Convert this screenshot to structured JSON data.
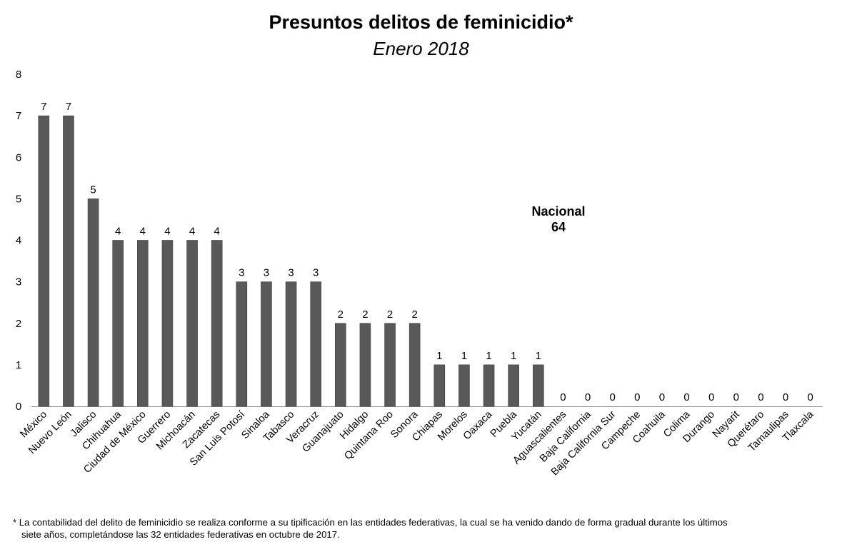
{
  "chart_data": {
    "type": "bar",
    "title": "Presuntos delitos de feminicidio*",
    "subtitle": "Enero 2018",
    "xlabel": "",
    "ylabel": "",
    "ylim": [
      0,
      8
    ],
    "yticks": [
      "0",
      "1",
      "2",
      "3",
      "4",
      "5",
      "6",
      "7",
      "8"
    ],
    "grid": false,
    "bar_color": "#595959",
    "categories": [
      "México",
      "Nuevo León",
      "Jalisco",
      "Chihuahua",
      "Ciudad de México",
      "Guerrero",
      "Michoacán",
      "Zacatecas",
      "San Luis Potosí",
      "Sinaloa",
      "Tabasco",
      "Veracruz",
      "Guanajuato",
      "Hidalgo",
      "Quintana Roo",
      "Sonora",
      "Chiapas",
      "Morelos",
      "Oaxaca",
      "Puebla",
      "Yucatán",
      "Aguascalientes",
      "Baja California",
      "Baja California Sur",
      "Campeche",
      "Coahuila",
      "Colima",
      "Durango",
      "Nayarit",
      "Querétaro",
      "Tamaulipas",
      "Tlaxcala"
    ],
    "values": [
      7,
      7,
      5,
      4,
      4,
      4,
      4,
      4,
      3,
      3,
      3,
      3,
      2,
      2,
      2,
      2,
      1,
      1,
      1,
      1,
      1,
      0,
      0,
      0,
      0,
      0,
      0,
      0,
      0,
      0,
      0,
      0
    ],
    "annotation": {
      "label": "Nacional",
      "value": "64"
    }
  },
  "footnote": {
    "line1": "* La contabilidad del delito de feminicidio se realiza conforme a su tipificación en las entidades federativas, la cual se ha venido dando de forma gradual durante los últimos",
    "line2": "siete años, completándose las 32 entidades federativas en octubre de 2017."
  }
}
